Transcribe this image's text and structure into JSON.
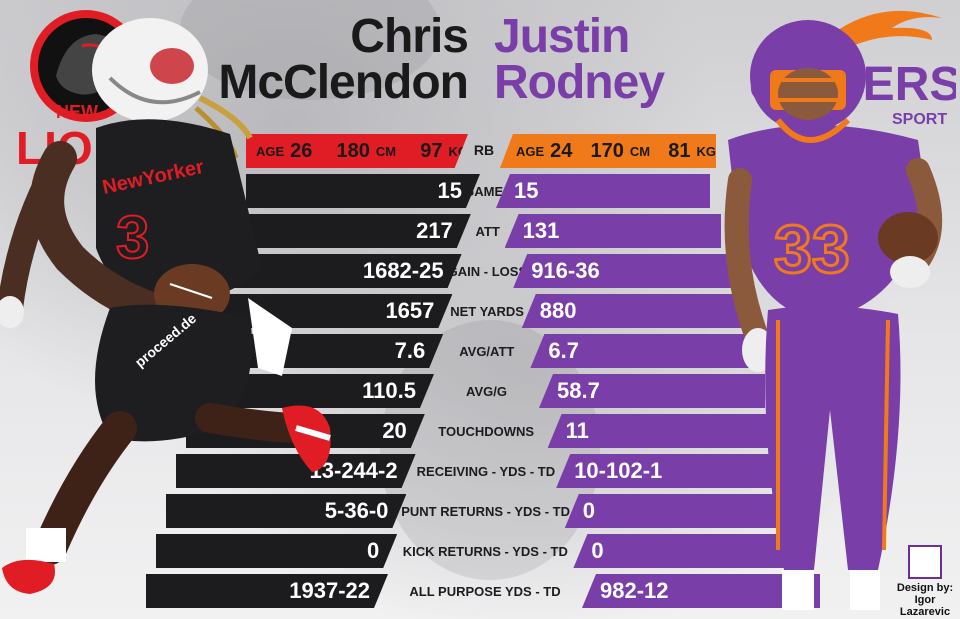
{
  "players": {
    "left": {
      "first_name": "Chris",
      "last_name": "McClendon",
      "age_label": "AGE",
      "age": "26",
      "height": "180",
      "height_unit": "CM",
      "weight": "97",
      "weight_unit": "KG",
      "color": "#e01c24",
      "team_logo_text_top": "NEW",
      "team_logo_text": "LIO",
      "jersey_text": "NewYorker"
    },
    "right": {
      "first_name": "Justin",
      "last_name": "Rodney",
      "age_label": "AGE",
      "age": "24",
      "height": "170",
      "height_unit": "CM",
      "weight": "81",
      "weight_unit": "KG",
      "color": "#f07a1a",
      "team_logo_text": "UNIVERSE",
      "team_logo_sub": "SPORT",
      "jersey_number": "33"
    }
  },
  "position": "RB",
  "stats": [
    {
      "label": "GAMES",
      "left": "15",
      "right": "15"
    },
    {
      "label": "ATT",
      "left": "217",
      "right": "131"
    },
    {
      "label": "GAIN - LOSS",
      "left": "1682-25",
      "right": "916-36"
    },
    {
      "label": "NET YARDS",
      "left": "1657",
      "right": "880"
    },
    {
      "label": "AVG/ATT",
      "left": "7.6",
      "right": "6.7"
    },
    {
      "label": "AVG/G",
      "left": "110.5",
      "right": "58.7"
    },
    {
      "label": "TOUCHDOWNS",
      "left": "20",
      "right": "11"
    },
    {
      "label": "RECEIVING - YDS - TD",
      "left": "13-244-2",
      "right": "10-102-1"
    },
    {
      "label": "PUNT RETURNS - YDS - TD",
      "left": "5-36-0",
      "right": "0"
    },
    {
      "label": "KICK RETURNS - YDS - TD",
      "left": "0",
      "right": "0"
    },
    {
      "label": "ALL PURPOSE YDS - TD",
      "left": "1937-22",
      "right": "982-12"
    }
  ],
  "credit": {
    "line1": "Design by:",
    "line2": "Igor Lazarevic"
  },
  "colors": {
    "dark_bar": "#1c1c1e",
    "purple_bar": "#7a3ea8",
    "red": "#e01c24",
    "orange": "#f07a1a"
  }
}
